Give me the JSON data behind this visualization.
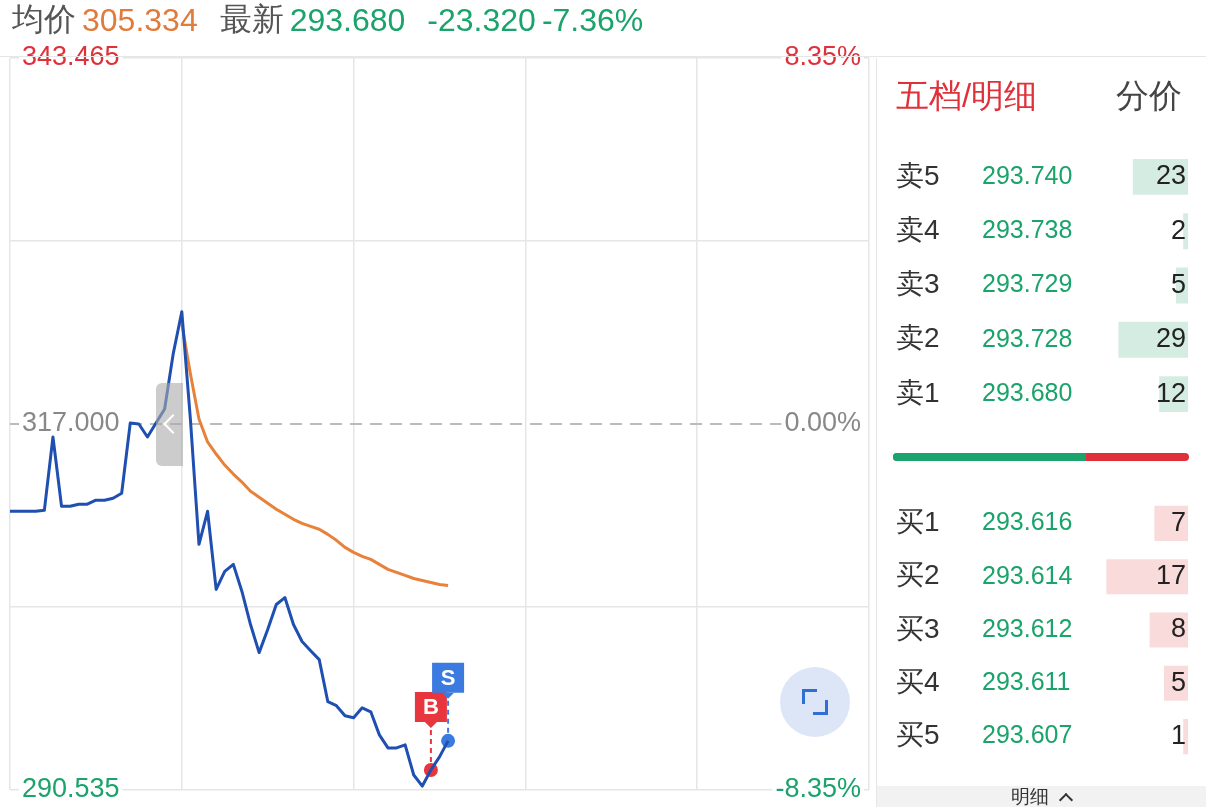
{
  "chart_data": [
    {
      "type": "line",
      "annotations": [
        "均价",
        "305.334",
        "最新",
        "293.680",
        "-23.320",
        "-7.36%"
      ],
      "categories": [
        null,
        null,
        null,
        null,
        null,
        null,
        null,
        null,
        null,
        null,
        null,
        null,
        null,
        null,
        null,
        null,
        null,
        null,
        null,
        null,
        null,
        null,
        null,
        null,
        null,
        null,
        null,
        null,
        null,
        null,
        null,
        null,
        null,
        null,
        null,
        null,
        null,
        null,
        null,
        null,
        null,
        null,
        null,
        null,
        null,
        null,
        null,
        null,
        null,
        null,
        null,
        null,
        null,
        null,
        null,
        null,
        null,
        null,
        null,
        null,
        null,
        null,
        null,
        null,
        null,
        null,
        null,
        null,
        null,
        null,
        null,
        null,
        null,
        null,
        null,
        null,
        null,
        null,
        null,
        null,
        null,
        null,
        null,
        null,
        null,
        null,
        null,
        null,
        null,
        null,
        null,
        null,
        null,
        null,
        null,
        null,
        null,
        null,
        null,
        null,
        null
      ],
      "series": [
        {
          "type": "line",
          "color": "#1f4fb0",
          "values": [
            310.69,
            310.69,
            310.69,
            310.69,
            310.76,
            316.06,
            311.05,
            311.05,
            311.2,
            311.2,
            311.49,
            311.49,
            311.63,
            311.99,
            317.07,
            317.0,
            316.06,
            317.07,
            318.09,
            322.08,
            325.12,
            317.36,
            308.3,
            310.69,
            305.04,
            306.34,
            306.85,
            304.89,
            302.5,
            300.47,
            302.14,
            303.95,
            304.45,
            302.5,
            301.27,
            300.61,
            299.96,
            296.92,
            296.63,
            295.9,
            295.76,
            296.48,
            296.19,
            294.52,
            293.58,
            293.58,
            293.8,
            291.62,
            290.82,
            291.98,
            292.93,
            294.09,
            null,
            null,
            null,
            null,
            null,
            null,
            null,
            null,
            null,
            null,
            null,
            null,
            null,
            null,
            null,
            null,
            null,
            null,
            null,
            null,
            null,
            null,
            null,
            null,
            null,
            null,
            null,
            null,
            null,
            null,
            null,
            null,
            null,
            null,
            null,
            null,
            null,
            null,
            null,
            null,
            null,
            null,
            null,
            null,
            null,
            null,
            null,
            null,
            null
          ]
        },
        {
          "type": "line",
          "color": "#e8823a",
          "values": [
            null,
            null,
            null,
            null,
            null,
            null,
            null,
            null,
            null,
            null,
            null,
            null,
            null,
            null,
            null,
            null,
            null,
            null,
            null,
            null,
            324.25,
            320.63,
            317.36,
            315.7,
            314.83,
            314.03,
            313.38,
            312.8,
            312.14,
            311.71,
            311.27,
            310.84,
            310.47,
            310.11,
            309.82,
            309.6,
            309.39,
            309.02,
            308.59,
            308.08,
            307.72,
            307.43,
            307.21,
            306.85,
            306.49,
            306.27,
            306.05,
            305.83,
            305.69,
            305.54,
            305.4,
            305.33,
            null,
            null,
            null,
            null,
            null,
            null,
            null,
            null,
            null,
            null,
            null,
            null,
            null,
            null,
            null,
            null,
            null,
            null,
            null,
            null,
            null,
            null,
            null,
            null,
            null,
            null,
            null,
            null,
            null,
            null,
            null,
            null,
            null,
            null,
            null,
            null,
            null,
            null,
            null,
            null,
            null,
            null,
            null,
            null,
            null,
            null,
            null,
            null,
            null
          ]
        },
        {
          "type": "scatter",
          "values": [
            null,
            null,
            null,
            null,
            null,
            null,
            null,
            null,
            null,
            null,
            null,
            null,
            null,
            null,
            null,
            null,
            null,
            null,
            null,
            null,
            null,
            null,
            null,
            null,
            null,
            null,
            null,
            null,
            null,
            null,
            null,
            null,
            null,
            null,
            null,
            null,
            null,
            null,
            null,
            null,
            null,
            null,
            null,
            null,
            null,
            null,
            null,
            null,
            null,
            291.98,
            null,
            294.09,
            null,
            null,
            null,
            null,
            null,
            null,
            null,
            null,
            null,
            null,
            null,
            null,
            null,
            null,
            null,
            null,
            null,
            null,
            null,
            null,
            null,
            null,
            null,
            null,
            null,
            null,
            null,
            null,
            null,
            null,
            null,
            null,
            null,
            null,
            null,
            null,
            null,
            null,
            null,
            null,
            null,
            null,
            null,
            null,
            null,
            null,
            null,
            null,
            null
          ],
          "colors": [
            null,
            null,
            null,
            null,
            null,
            null,
            null,
            null,
            null,
            null,
            null,
            null,
            null,
            null,
            null,
            null,
            null,
            null,
            null,
            null,
            null,
            null,
            null,
            null,
            null,
            null,
            null,
            null,
            null,
            null,
            null,
            null,
            null,
            null,
            null,
            null,
            null,
            null,
            null,
            null,
            null,
            null,
            null,
            null,
            null,
            null,
            null,
            null,
            null,
            "#e8363e",
            null,
            "#3b7be0",
            null,
            null,
            null,
            null,
            null,
            null,
            null,
            null,
            null,
            null,
            null,
            null,
            null,
            null,
            null,
            null,
            null,
            null,
            null,
            null,
            null,
            null,
            null,
            null,
            null,
            null,
            null,
            null,
            null,
            null,
            null,
            null,
            null,
            null,
            null,
            null,
            null,
            null,
            null,
            null,
            null,
            null,
            null,
            null,
            null,
            null,
            null,
            null,
            null
          ],
          "value_labels": [
            null,
            null,
            null,
            null,
            null,
            null,
            null,
            null,
            null,
            null,
            null,
            null,
            null,
            null,
            null,
            null,
            null,
            null,
            null,
            null,
            null,
            null,
            null,
            null,
            null,
            null,
            null,
            null,
            null,
            null,
            null,
            null,
            null,
            null,
            null,
            null,
            null,
            null,
            null,
            null,
            null,
            null,
            null,
            null,
            null,
            null,
            null,
            null,
            null,
            "B",
            null,
            "S",
            null,
            null,
            null,
            null,
            null,
            null,
            null,
            null,
            null,
            null,
            null,
            null,
            null,
            null,
            null,
            null,
            null,
            null,
            null,
            null,
            null,
            null,
            null,
            null,
            null,
            null,
            null,
            null,
            null,
            null,
            null,
            null,
            null,
            null,
            null,
            null,
            null,
            null,
            null,
            null,
            null,
            null,
            null,
            null,
            null,
            null,
            null,
            null,
            null
          ]
        }
      ],
      "ylim": [
        290.535,
        343.465
      ],
      "yticks": [
        290.535,
        {
          "value": 303.7675,
          "label": null
        },
        {
          "value": 317,
          "label": "317.000"
        },
        {
          "value": 330.2325,
          "label": null
        },
        343.465
      ],
      "y2lim": [
        -8.35,
        8.35
      ],
      "y2ticks": [
        {
          "value": -8.35,
          "label": "-8.35%"
        },
        {
          "value": 0,
          "label": "0.00%"
        },
        {
          "value": 8.35,
          "label": "8.35%"
        }
      ],
      "ref_lines": [
        {
          "axis": "y",
          "value": 317,
          "color": "#bbbbbb",
          "line_style": "dashed"
        }
      ],
      "grid": true,
      "legend": false,
      "tick_labels": "y"
    },
    {
      "type": "bar",
      "orientation": "horizontal",
      "title": "五档/明细",
      "annotations": [
        "分价",
        "293.740",
        "293.738",
        "293.729",
        "293.728",
        "293.680"
      ],
      "categories": [
        "卖5",
        "卖4",
        "卖3",
        "卖2",
        "卖1"
      ],
      "values": [
        23,
        2,
        5,
        29,
        12
      ],
      "colors": [
        "#d5ece2",
        "#d5ece2",
        "#d5ece2",
        "#d5ece2",
        "#d5ece2"
      ],
      "data_labels": true,
      "legend": false
    },
    {
      "type": "bar",
      "orientation": "horizontal",
      "annotations": [
        "明细",
        "293.616",
        "293.614",
        "293.612",
        "293.611",
        "293.607"
      ],
      "categories": [
        "买1",
        "买2",
        "买3",
        "买4",
        "买5"
      ],
      "values": [
        7,
        17,
        8,
        5,
        1
      ],
      "colors": [
        "#fadbdc",
        "#fadbdc",
        "#fadbdc",
        "#fadbdc",
        "#fadbdc"
      ],
      "data_labels": true,
      "legend": false
    }
  ]
}
